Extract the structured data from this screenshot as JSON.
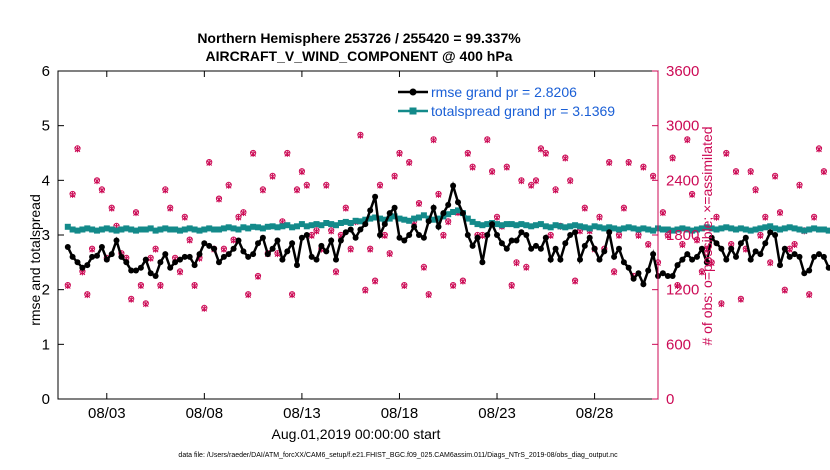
{
  "chart_data": {
    "type": "line",
    "title_line1": "Northern Hemisphere 253726 / 255420 = 99.337%",
    "title_line2": "AIRCRAFT_V_WIND_COMPONENT @ 400 hPa",
    "xlabel": "Aug.01,2019 00:00:00 start",
    "ylabel_left": "rmse and totalspread",
    "ylabel_right": "# of obs: o=possible; ×=assimilated",
    "x_range": [
      0.5,
      31.25
    ],
    "x_tick_labels": [
      "08/03",
      "08/08",
      "08/13",
      "08/18",
      "08/23",
      "08/28"
    ],
    "x_tick_days": [
      3,
      8,
      13,
      18,
      23,
      28
    ],
    "ylim_left": [
      0,
      6
    ],
    "yticks_left": [
      "0",
      "1",
      "2",
      "3",
      "4",
      "5",
      "6"
    ],
    "ylim_right": [
      0,
      3600
    ],
    "yticks_right": [
      "0",
      "600",
      "1200",
      "1800",
      "2400",
      "3000",
      "3600"
    ],
    "legend": [
      "rmse grand pr = 2.8206",
      "totalspread grand pr = 3.1369"
    ],
    "footnote": "data file: /Users/raeder/DAI/ATM_forcXX/CAM6_setup/f.e21.FHIST_BGC.f09_025.CAM6assim.011/Diags_NTrS_2019-08/obs_diag_output.nc",
    "colors": {
      "rmse": "#000000",
      "spread": "#138a8a",
      "obs": "#cc0a55",
      "legend_text": "#1a5fd6",
      "axis": "#000000"
    },
    "series": [
      {
        "name": "rmse",
        "values": [
          2.78,
          2.6,
          2.5,
          2.4,
          2.45,
          2.6,
          2.62,
          2.78,
          2.55,
          2.65,
          2.9,
          2.6,
          2.5,
          2.35,
          2.35,
          2.4,
          2.55,
          2.3,
          2.25,
          2.5,
          2.65,
          2.4,
          2.5,
          2.55,
          2.6,
          2.6,
          2.45,
          2.65,
          2.85,
          2.8,
          2.75,
          2.5,
          2.6,
          2.65,
          2.75,
          2.9,
          2.7,
          2.6,
          2.65,
          2.85,
          2.95,
          2.65,
          2.75,
          2.9,
          2.55,
          2.7,
          2.85,
          2.45,
          2.95,
          3.0,
          2.6,
          2.55,
          2.8,
          2.7,
          2.9,
          2.55,
          2.9,
          3.05,
          3.1,
          2.95,
          3.1,
          3.2,
          3.45,
          3.7,
          3.0,
          3.2,
          3.4,
          3.5,
          2.95,
          2.9,
          3.0,
          3.15,
          3.0,
          2.95,
          3.25,
          3.5,
          3.15,
          3.4,
          3.55,
          3.9,
          3.6,
          3.4,
          3.0,
          2.8,
          2.95,
          2.5,
          3.0,
          3.2,
          3.0,
          2.85,
          2.75,
          2.9,
          2.9,
          3.05,
          3.0,
          2.75,
          2.8,
          2.75,
          2.95,
          2.55,
          2.75,
          2.55,
          2.85,
          3.0,
          3.05,
          2.55,
          2.8,
          2.95,
          2.75,
          2.55,
          2.7,
          3.05,
          2.6,
          2.75,
          2.5,
          2.4,
          2.2,
          2.3,
          2.1,
          2.35,
          2.65,
          2.25,
          2.3,
          2.25,
          2.25,
          2.45,
          2.55,
          2.65,
          2.55,
          2.6,
          2.75,
          2.5,
          2.95,
          2.85,
          2.75,
          2.55,
          2.75,
          2.6,
          2.85,
          2.95,
          2.55,
          2.7,
          2.65,
          2.85,
          3.05,
          3.0,
          2.45,
          2.75,
          2.6,
          2.65,
          2.6,
          2.3,
          2.35,
          2.6,
          2.65,
          2.6,
          2.4,
          2.45,
          2.6,
          2.75,
          2.65,
          2.65,
          2.8,
          2.9
        ]
      },
      {
        "name": "totalspread",
        "values": [
          3.15,
          3.1,
          3.08,
          3.1,
          3.12,
          3.1,
          3.08,
          3.1,
          3.12,
          3.1,
          3.08,
          3.1,
          3.12,
          3.1,
          3.08,
          3.1,
          3.1,
          3.12,
          3.08,
          3.1,
          3.12,
          3.1,
          3.1,
          3.08,
          3.1,
          3.12,
          3.1,
          3.08,
          3.1,
          3.12,
          3.1,
          3.1,
          3.12,
          3.14,
          3.12,
          3.1,
          3.14,
          3.12,
          3.15,
          3.14,
          3.12,
          3.15,
          3.16,
          3.14,
          3.16,
          3.18,
          3.14,
          3.16,
          3.2,
          3.16,
          3.18,
          3.2,
          3.18,
          3.22,
          3.2,
          3.18,
          3.22,
          3.24,
          3.22,
          3.26,
          3.25,
          3.28,
          3.3,
          3.32,
          3.3,
          3.28,
          3.3,
          3.34,
          3.3,
          3.28,
          3.26,
          3.3,
          3.32,
          3.36,
          3.3,
          3.28,
          3.3,
          3.34,
          3.38,
          3.42,
          3.45,
          3.4,
          3.3,
          3.24,
          3.2,
          3.18,
          3.2,
          3.22,
          3.2,
          3.18,
          3.2,
          3.2,
          3.18,
          3.2,
          3.18,
          3.16,
          3.18,
          3.2,
          3.16,
          3.14,
          3.18,
          3.16,
          3.14,
          3.16,
          3.18,
          3.16,
          3.14,
          3.12,
          3.16,
          3.14,
          3.12,
          3.14,
          3.12,
          3.1,
          3.12,
          3.14,
          3.12,
          3.1,
          3.12,
          3.1,
          3.08,
          3.12,
          3.1,
          3.1,
          3.08,
          3.1,
          3.12,
          3.1,
          3.08,
          3.1,
          3.12,
          3.14,
          3.12,
          3.1,
          3.12,
          3.14,
          3.12,
          3.1,
          3.12,
          3.1,
          3.08,
          3.1,
          3.12,
          3.14,
          3.16,
          3.12,
          3.1,
          3.12,
          3.14,
          3.12,
          3.1,
          3.08,
          3.1,
          3.12,
          3.1,
          3.1,
          3.08,
          3.1,
          3.12,
          3.14,
          3.16,
          3.14
        ]
      },
      {
        "name": "obs_possible",
        "values": [
          1250,
          2250,
          2750,
          1400,
          1150,
          1650,
          2400,
          2300,
          1550,
          2100,
          1900,
          1600,
          1550,
          1100,
          2050,
          1250,
          1050,
          1550,
          1650,
          1250,
          2300,
          2100,
          1550,
          1400,
          2000,
          1750,
          1250,
          1550,
          1000,
          2600,
          1650,
          2200,
          1650,
          2350,
          1750,
          2000,
          2050,
          1150,
          2700,
          1350,
          2300,
          1600,
          2450,
          1600,
          1950,
          2700,
          1150,
          2300,
          2500,
          2350,
          1800,
          1850,
          1650,
          2350,
          1850,
          1400,
          1800,
          2100,
          1650,
          1950,
          2900,
          1200,
          1650,
          1300,
          2350,
          1800,
          1600,
          2450,
          2700,
          1250,
          2600,
          1950,
          2150,
          1450,
          1150,
          2850,
          2250,
          1800,
          1950,
          1250,
          2050,
          1300,
          2700,
          2550,
          1800,
          1800,
          2850,
          2500,
          2000,
          1900,
          2550,
          1250,
          1500,
          2400,
          1450,
          2350,
          2400,
          2750,
          2700,
          1800,
          2300,
          1900,
          2650,
          2400,
          1300,
          1850,
          2100,
          1850,
          1650,
          2000,
          1650,
          2600,
          1400,
          1800,
          2100,
          2600,
          1350,
          1800,
          2550,
          1700,
          2450,
          1500,
          2050,
          1800,
          2650,
          1250,
          1700,
          2850,
          2250,
          1750,
          1400,
          1650,
          1500,
          2000,
          1050,
          2700,
          1700,
          2500,
          1100,
          1650,
          2500,
          2300,
          1800,
          2000,
          1500,
          2450,
          2050,
          1200,
          1650,
          1700,
          2350,
          1850,
          1150,
          2000,
          2750,
          2500
        ]
      },
      {
        "name": "obs_assimilated",
        "values": [
          1240,
          2240,
          2740,
          1390,
          1140,
          1640,
          2390,
          2290,
          1540,
          2090,
          1890,
          1590,
          1540,
          1090,
          2040,
          1240,
          1040,
          1540,
          1640,
          1240,
          2290,
          2090,
          1540,
          1390,
          1990,
          1740,
          1240,
          1540,
          990,
          2590,
          1640,
          2190,
          1640,
          2340,
          1740,
          1990,
          2040,
          1140,
          2690,
          1340,
          2290,
          1590,
          2440,
          1590,
          1940,
          2690,
          1140,
          2290,
          2490,
          2340,
          1790,
          1840,
          1640,
          2340,
          1840,
          1390,
          1790,
          2090,
          1640,
          1940,
          2890,
          1190,
          1640,
          1290,
          2340,
          1790,
          1590,
          2440,
          2690,
          1240,
          2590,
          1940,
          2140,
          1440,
          1140,
          2840,
          2240,
          1790,
          1940,
          1240,
          2040,
          1290,
          2690,
          2540,
          1790,
          1790,
          2840,
          2490,
          1990,
          1890,
          2540,
          1240,
          1490,
          2390,
          1440,
          2340,
          2390,
          2740,
          2690,
          1790,
          2290,
          1890,
          2640,
          2390,
          1290,
          1840,
          2090,
          1840,
          1640,
          1990,
          1640,
          2590,
          1390,
          1790,
          2090,
          2590,
          1340,
          1790,
          2540,
          1690,
          2440,
          1490,
          2040,
          1790,
          2640,
          1240,
          1690,
          2840,
          2240,
          1740,
          1390,
          1640,
          1490,
          1990,
          1040,
          2690,
          1690,
          2490,
          1090,
          1640,
          2490,
          2290,
          1790,
          1990,
          1490,
          2440,
          2040,
          1190,
          1640,
          1690,
          2340,
          1840,
          1140,
          1990,
          2740,
          2490
        ]
      }
    ]
  }
}
